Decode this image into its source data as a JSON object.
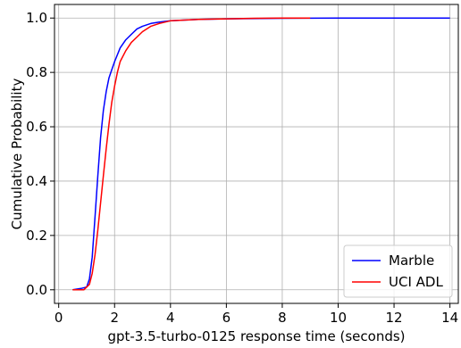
{
  "chart_data": {
    "type": "line",
    "title": "",
    "xlabel": "gpt-3.5-turbo-0125 response time (seconds)",
    "ylabel": "Cumulative Probability",
    "xlim": [
      -0.15,
      14.3
    ],
    "ylim": [
      -0.05,
      1.05
    ],
    "xticks": [
      0,
      2,
      4,
      6,
      8,
      10,
      12,
      14
    ],
    "yticks": [
      0.0,
      0.2,
      0.4,
      0.6,
      0.8,
      1.0
    ],
    "xtick_labels": [
      "0",
      "2",
      "4",
      "6",
      "8",
      "10",
      "12",
      "14"
    ],
    "ytick_labels": [
      "0.0",
      "0.2",
      "0.4",
      "0.6",
      "0.8",
      "1.0"
    ],
    "grid": true,
    "legend_position": "bottom-right",
    "series": [
      {
        "name": "Marble",
        "color": "#0000ff",
        "x": [
          0.5,
          0.8,
          1.0,
          1.1,
          1.2,
          1.3,
          1.4,
          1.5,
          1.6,
          1.7,
          1.8,
          1.9,
          2.0,
          2.2,
          2.4,
          2.6,
          2.8,
          3.0,
          3.3,
          3.6,
          4.0,
          5.0,
          6.0,
          8.0,
          10.0,
          12.0,
          14.0
        ],
        "y": [
          0.0,
          0.005,
          0.01,
          0.04,
          0.12,
          0.27,
          0.42,
          0.56,
          0.66,
          0.73,
          0.78,
          0.81,
          0.84,
          0.89,
          0.92,
          0.94,
          0.96,
          0.97,
          0.98,
          0.985,
          0.99,
          0.995,
          0.997,
          0.999,
          1.0,
          1.0,
          1.0
        ]
      },
      {
        "name": "UCI ADL",
        "color": "#ff0000",
        "x": [
          0.5,
          0.9,
          1.1,
          1.2,
          1.3,
          1.4,
          1.5,
          1.6,
          1.7,
          1.8,
          1.9,
          2.0,
          2.1,
          2.2,
          2.4,
          2.6,
          2.8,
          3.0,
          3.3,
          3.6,
          4.0,
          5.0,
          6.0,
          7.0,
          8.0,
          9.0
        ],
        "y": [
          0.0,
          0.0,
          0.02,
          0.06,
          0.13,
          0.22,
          0.32,
          0.42,
          0.52,
          0.61,
          0.69,
          0.75,
          0.8,
          0.84,
          0.88,
          0.91,
          0.93,
          0.95,
          0.97,
          0.98,
          0.99,
          0.995,
          0.997,
          0.999,
          1.0,
          1.0
        ]
      }
    ]
  }
}
